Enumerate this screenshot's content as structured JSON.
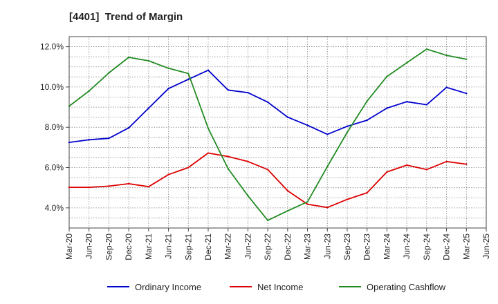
{
  "chart_data": {
    "type": "line",
    "title": "[4401]  Trend of Margin",
    "xlabel": "",
    "ylabel": "",
    "x": [
      "Mar-20",
      "Jun-20",
      "Sep-20",
      "Dec-20",
      "Mar-21",
      "Jun-21",
      "Sep-21",
      "Dec-21",
      "Mar-22",
      "Jun-22",
      "Sep-22",
      "Dec-22",
      "Mar-23",
      "Jun-23",
      "Sep-23",
      "Dec-23",
      "Mar-24",
      "Jun-24",
      "Sep-24",
      "Dec-24",
      "Mar-25"
    ],
    "x_tick_labels": [
      "Mar-20",
      "Jun-20",
      "Sep-20",
      "Dec-20",
      "Mar-21",
      "Jun-21",
      "Sep-21",
      "Dec-21",
      "Mar-22",
      "Jun-22",
      "Sep-22",
      "Dec-22",
      "Mar-23",
      "Jun-23",
      "Sep-23",
      "Dec-23",
      "Mar-24",
      "Jun-24",
      "Sep-24",
      "Dec-24",
      "Mar-25",
      "Jun-25"
    ],
    "ylim": [
      3.0,
      12.5
    ],
    "y_ticks": [
      4.0,
      6.0,
      8.0,
      10.0,
      12.0
    ],
    "y_tick_labels": [
      "4.0%",
      "6.0%",
      "8.0%",
      "10.0%",
      "12.0%"
    ],
    "grid": true,
    "legend_position": "bottom",
    "series": [
      {
        "name": "Ordinary Income",
        "color": "#0000cc",
        "values": [
          7.25,
          7.38,
          7.45,
          7.97,
          8.95,
          9.92,
          10.38,
          10.83,
          9.85,
          9.72,
          9.25,
          8.5,
          8.1,
          7.65,
          8.05,
          8.35,
          8.95,
          9.27,
          9.12,
          9.98,
          9.68
        ]
      },
      {
        "name": "Net Income",
        "color": "#dd0000",
        "values": [
          5.02,
          5.02,
          5.08,
          5.2,
          5.05,
          5.65,
          6.0,
          6.72,
          6.55,
          6.3,
          5.9,
          4.85,
          4.18,
          4.02,
          4.42,
          4.75,
          5.78,
          6.12,
          5.9,
          6.3,
          6.17
        ]
      },
      {
        "name": "Operating Cashflow",
        "color": "#228b22",
        "values": [
          9.05,
          9.8,
          10.7,
          11.47,
          11.3,
          10.93,
          10.67,
          7.95,
          5.95,
          4.6,
          3.38,
          3.85,
          4.3,
          6.05,
          7.75,
          9.3,
          10.52,
          11.2,
          11.88,
          11.57,
          11.38
        ]
      }
    ]
  }
}
